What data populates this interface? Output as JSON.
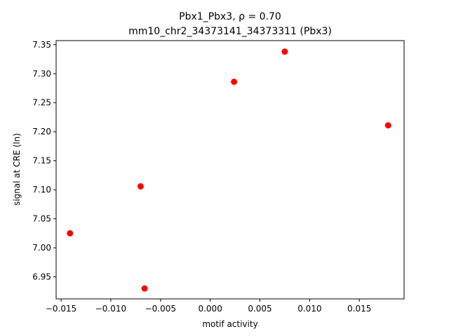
{
  "chart_data": {
    "type": "scatter",
    "title_line1": "Pbx1_Pbx3, ρ = 0.70",
    "title_line2": "mm10_chr2_34373141_34373311 (Pbx3)",
    "xlabel": "motif activity",
    "ylabel": "signal at CRE (ln)",
    "xlim": [
      -0.0155,
      0.0195
    ],
    "ylim": [
      6.912,
      7.357
    ],
    "xticks": [
      -0.015,
      -0.01,
      -0.005,
      0.0,
      0.005,
      0.01,
      0.015
    ],
    "xtick_labels": [
      "−0.015",
      "−0.010",
      "−0.005",
      "0.000",
      "0.005",
      "0.010",
      "0.015"
    ],
    "yticks": [
      6.95,
      7.0,
      7.05,
      7.1,
      7.15,
      7.2,
      7.25,
      7.3,
      7.35
    ],
    "ytick_labels": [
      "6.95",
      "7.00",
      "7.05",
      "7.10",
      "7.15",
      "7.20",
      "7.25",
      "7.30",
      "7.35"
    ],
    "point_color": "#ff0000",
    "grid": false,
    "points": [
      {
        "x": -0.0141,
        "y": 7.025
      },
      {
        "x": -0.007,
        "y": 7.106
      },
      {
        "x": -0.0066,
        "y": 6.93
      },
      {
        "x": 0.0024,
        "y": 7.286
      },
      {
        "x": 0.0075,
        "y": 7.338
      },
      {
        "x": 0.0179,
        "y": 7.211
      }
    ]
  }
}
